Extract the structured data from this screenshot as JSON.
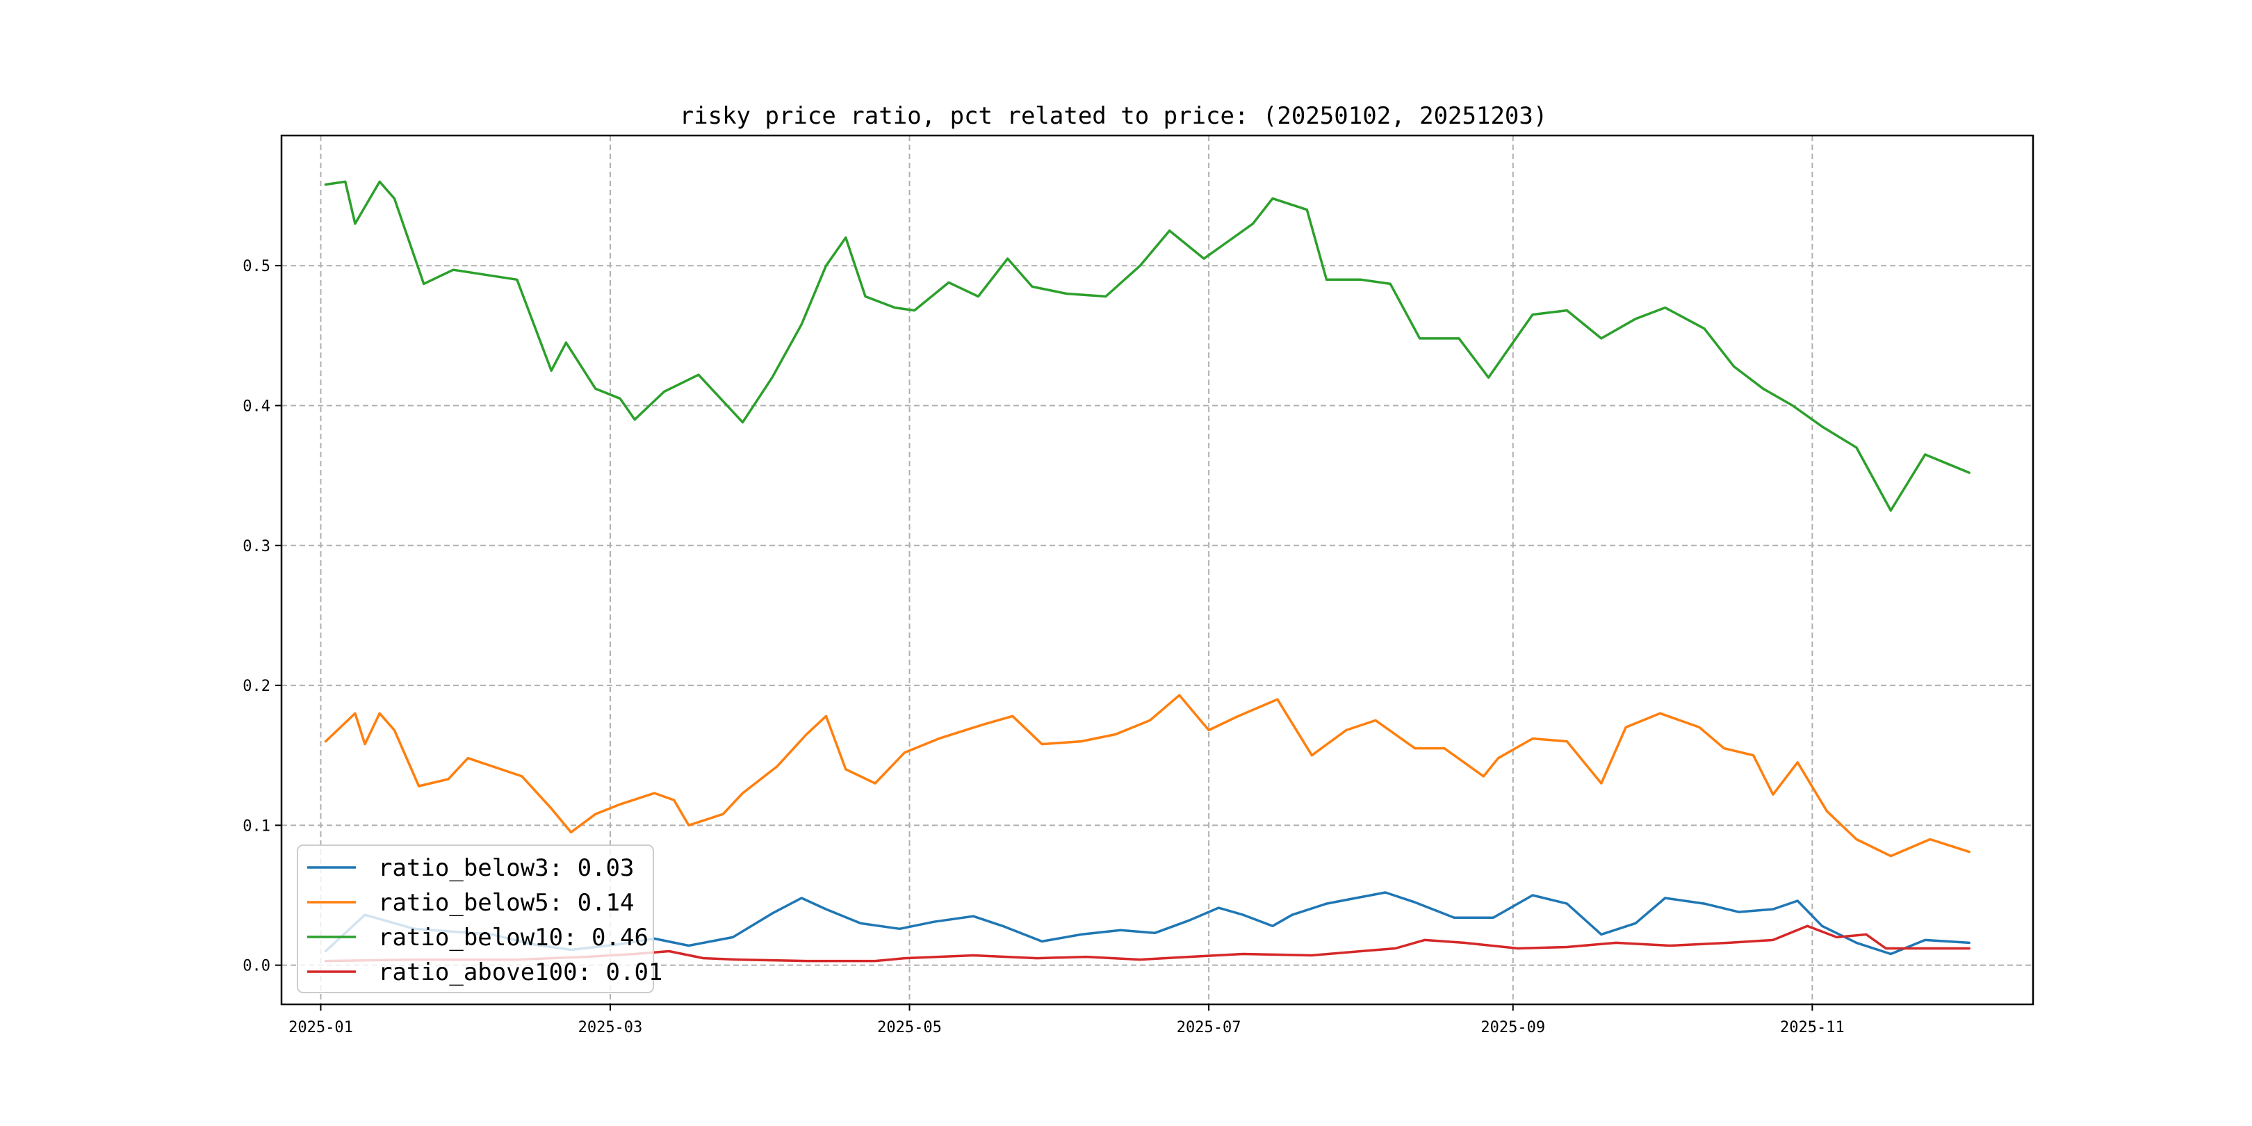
{
  "chart_data": {
    "type": "line",
    "title": "risky price ratio, pct related to price: (20250102, 20251203)",
    "xlabel": "",
    "ylabel": "",
    "xlim": [
      "2024-12-24",
      "2025-12-16"
    ],
    "ylim": [
      -0.028,
      0.593
    ],
    "x_ticks": [
      "2025-01",
      "2025-03",
      "2025-05",
      "2025-07",
      "2025-09",
      "2025-11"
    ],
    "y_ticks": [
      0.0,
      0.1,
      0.2,
      0.3,
      0.4,
      0.5
    ],
    "y_tick_labels": [
      "0.0",
      "0.1",
      "0.2",
      "0.3",
      "0.4",
      "0.5"
    ],
    "grid": true,
    "legend_position": "lower-left",
    "series": [
      {
        "name": "ratio_below3",
        "legend_label": "ratio_below3: 0.03",
        "color": "#1f77b4",
        "points": [
          [
            "2025-01-02",
            0.01
          ],
          [
            "2025-01-10",
            0.036
          ],
          [
            "2025-01-14",
            0.032
          ],
          [
            "2025-01-20",
            0.026
          ],
          [
            "2025-02-05",
            0.022
          ],
          [
            "2025-02-13",
            0.015
          ],
          [
            "2025-02-21",
            0.011
          ],
          [
            "2025-03-03",
            0.015
          ],
          [
            "2025-03-10",
            0.019
          ],
          [
            "2025-03-17",
            0.014
          ],
          [
            "2025-03-26",
            0.02
          ],
          [
            "2025-04-03",
            0.037
          ],
          [
            "2025-04-09",
            0.048
          ],
          [
            "2025-04-14",
            0.04
          ],
          [
            "2025-04-21",
            0.03
          ],
          [
            "2025-04-29",
            0.026
          ],
          [
            "2025-05-06",
            0.031
          ],
          [
            "2025-05-14",
            0.035
          ],
          [
            "2025-05-20",
            0.028
          ],
          [
            "2025-05-28",
            0.017
          ],
          [
            "2025-06-05",
            0.022
          ],
          [
            "2025-06-13",
            0.025
          ],
          [
            "2025-06-20",
            0.023
          ],
          [
            "2025-06-27",
            0.032
          ],
          [
            "2025-07-03",
            0.041
          ],
          [
            "2025-07-08",
            0.036
          ],
          [
            "2025-07-14",
            0.028
          ],
          [
            "2025-07-18",
            0.036
          ],
          [
            "2025-07-25",
            0.044
          ],
          [
            "2025-07-31",
            0.048
          ],
          [
            "2025-08-06",
            0.052
          ],
          [
            "2025-08-12",
            0.045
          ],
          [
            "2025-08-20",
            0.034
          ],
          [
            "2025-08-28",
            0.034
          ],
          [
            "2025-09-05",
            0.05
          ],
          [
            "2025-09-12",
            0.044
          ],
          [
            "2025-09-19",
            0.022
          ],
          [
            "2025-09-26",
            0.03
          ],
          [
            "2025-10-02",
            0.048
          ],
          [
            "2025-10-10",
            0.044
          ],
          [
            "2025-10-17",
            0.038
          ],
          [
            "2025-10-24",
            0.04
          ],
          [
            "2025-10-29",
            0.046
          ],
          [
            "2025-11-03",
            0.028
          ],
          [
            "2025-11-10",
            0.016
          ],
          [
            "2025-11-17",
            0.008
          ],
          [
            "2025-11-24",
            0.018
          ],
          [
            "2025-12-03",
            0.016
          ]
        ]
      },
      {
        "name": "ratio_below5",
        "legend_label": "ratio_below5: 0.14",
        "color": "#ff7f0e",
        "points": [
          [
            "2025-01-02",
            0.16
          ],
          [
            "2025-01-08",
            0.18
          ],
          [
            "2025-01-10",
            0.158
          ],
          [
            "2025-01-13",
            0.18
          ],
          [
            "2025-01-16",
            0.168
          ],
          [
            "2025-01-21",
            0.128
          ],
          [
            "2025-01-27",
            0.133
          ],
          [
            "2025-01-31",
            0.148
          ],
          [
            "2025-02-11",
            0.135
          ],
          [
            "2025-02-17",
            0.112
          ],
          [
            "2025-02-21",
            0.095
          ],
          [
            "2025-02-26",
            0.108
          ],
          [
            "2025-03-03",
            0.115
          ],
          [
            "2025-03-10",
            0.123
          ],
          [
            "2025-03-14",
            0.118
          ],
          [
            "2025-03-17",
            0.1
          ],
          [
            "2025-03-24",
            0.108
          ],
          [
            "2025-03-28",
            0.123
          ],
          [
            "2025-04-04",
            0.142
          ],
          [
            "2025-04-10",
            0.165
          ],
          [
            "2025-04-14",
            0.178
          ],
          [
            "2025-04-18",
            0.14
          ],
          [
            "2025-04-24",
            0.13
          ],
          [
            "2025-04-30",
            0.152
          ],
          [
            "2025-05-07",
            0.162
          ],
          [
            "2025-05-16",
            0.172
          ],
          [
            "2025-05-22",
            0.178
          ],
          [
            "2025-05-28",
            0.158
          ],
          [
            "2025-06-05",
            0.16
          ],
          [
            "2025-06-12",
            0.165
          ],
          [
            "2025-06-19",
            0.175
          ],
          [
            "2025-06-25",
            0.193
          ],
          [
            "2025-07-01",
            0.168
          ],
          [
            "2025-07-07",
            0.178
          ],
          [
            "2025-07-15",
            0.19
          ],
          [
            "2025-07-22",
            0.15
          ],
          [
            "2025-07-29",
            0.168
          ],
          [
            "2025-08-04",
            0.175
          ],
          [
            "2025-08-12",
            0.155
          ],
          [
            "2025-08-18",
            0.155
          ],
          [
            "2025-08-26",
            0.135
          ],
          [
            "2025-08-29",
            0.148
          ],
          [
            "2025-09-05",
            0.162
          ],
          [
            "2025-09-12",
            0.16
          ],
          [
            "2025-09-19",
            0.13
          ],
          [
            "2025-09-24",
            0.17
          ],
          [
            "2025-10-01",
            0.18
          ],
          [
            "2025-10-09",
            0.17
          ],
          [
            "2025-10-14",
            0.155
          ],
          [
            "2025-10-20",
            0.15
          ],
          [
            "2025-10-24",
            0.122
          ],
          [
            "2025-10-29",
            0.145
          ],
          [
            "2025-11-04",
            0.11
          ],
          [
            "2025-11-10",
            0.09
          ],
          [
            "2025-11-17",
            0.078
          ],
          [
            "2025-11-25",
            0.09
          ],
          [
            "2025-12-03",
            0.081
          ]
        ]
      },
      {
        "name": "ratio_below10",
        "legend_label": "ratio_below10: 0.46",
        "color": "#2ca02c",
        "points": [
          [
            "2025-01-02",
            0.558
          ],
          [
            "2025-01-06",
            0.56
          ],
          [
            "2025-01-08",
            0.53
          ],
          [
            "2025-01-13",
            0.56
          ],
          [
            "2025-01-16",
            0.548
          ],
          [
            "2025-01-22",
            0.487
          ],
          [
            "2025-01-28",
            0.497
          ],
          [
            "2025-02-10",
            0.49
          ],
          [
            "2025-02-17",
            0.425
          ],
          [
            "2025-02-20",
            0.445
          ],
          [
            "2025-02-26",
            0.412
          ],
          [
            "2025-03-03",
            0.405
          ],
          [
            "2025-03-06",
            0.39
          ],
          [
            "2025-03-12",
            0.41
          ],
          [
            "2025-03-19",
            0.422
          ],
          [
            "2025-03-28",
            0.388
          ],
          [
            "2025-04-03",
            0.42
          ],
          [
            "2025-04-09",
            0.458
          ],
          [
            "2025-04-14",
            0.5
          ],
          [
            "2025-04-18",
            0.52
          ],
          [
            "2025-04-22",
            0.478
          ],
          [
            "2025-04-28",
            0.47
          ],
          [
            "2025-05-02",
            0.468
          ],
          [
            "2025-05-09",
            0.488
          ],
          [
            "2025-05-15",
            0.478
          ],
          [
            "2025-05-21",
            0.505
          ],
          [
            "2025-05-26",
            0.485
          ],
          [
            "2025-06-02",
            0.48
          ],
          [
            "2025-06-10",
            0.478
          ],
          [
            "2025-06-17",
            0.5
          ],
          [
            "2025-06-23",
            0.525
          ],
          [
            "2025-06-30",
            0.505
          ],
          [
            "2025-07-04",
            0.515
          ],
          [
            "2025-07-10",
            0.53
          ],
          [
            "2025-07-14",
            0.548
          ],
          [
            "2025-07-21",
            0.54
          ],
          [
            "2025-07-25",
            0.49
          ],
          [
            "2025-08-01",
            0.49
          ],
          [
            "2025-08-07",
            0.487
          ],
          [
            "2025-08-13",
            0.448
          ],
          [
            "2025-08-21",
            0.448
          ],
          [
            "2025-08-27",
            0.42
          ],
          [
            "2025-09-02",
            0.45
          ],
          [
            "2025-09-05",
            0.465
          ],
          [
            "2025-09-12",
            0.468
          ],
          [
            "2025-09-19",
            0.448
          ],
          [
            "2025-09-26",
            0.462
          ],
          [
            "2025-10-02",
            0.47
          ],
          [
            "2025-10-10",
            0.455
          ],
          [
            "2025-10-16",
            0.428
          ],
          [
            "2025-10-22",
            0.412
          ],
          [
            "2025-10-28",
            0.4
          ],
          [
            "2025-11-03",
            0.385
          ],
          [
            "2025-11-10",
            0.37
          ],
          [
            "2025-11-17",
            0.325
          ],
          [
            "2025-11-24",
            0.365
          ],
          [
            "2025-12-03",
            0.352
          ]
        ]
      },
      {
        "name": "ratio_above100",
        "legend_label": "ratio_above100: 0.01",
        "color": "#d62728",
        "points": [
          [
            "2025-01-02",
            0.003
          ],
          [
            "2025-01-20",
            0.004
          ],
          [
            "2025-02-10",
            0.004
          ],
          [
            "2025-02-24",
            0.006
          ],
          [
            "2025-03-06",
            0.008
          ],
          [
            "2025-03-13",
            0.01
          ],
          [
            "2025-03-20",
            0.005
          ],
          [
            "2025-03-27",
            0.004
          ],
          [
            "2025-04-10",
            0.003
          ],
          [
            "2025-04-24",
            0.003
          ],
          [
            "2025-04-30",
            0.005
          ],
          [
            "2025-05-14",
            0.007
          ],
          [
            "2025-05-27",
            0.005
          ],
          [
            "2025-06-06",
            0.006
          ],
          [
            "2025-06-17",
            0.004
          ],
          [
            "2025-06-27",
            0.006
          ],
          [
            "2025-07-08",
            0.008
          ],
          [
            "2025-07-22",
            0.007
          ],
          [
            "2025-08-01",
            0.01
          ],
          [
            "2025-08-08",
            0.012
          ],
          [
            "2025-08-14",
            0.018
          ],
          [
            "2025-08-22",
            0.016
          ],
          [
            "2025-09-02",
            0.012
          ],
          [
            "2025-09-12",
            0.013
          ],
          [
            "2025-09-22",
            0.016
          ],
          [
            "2025-10-03",
            0.014
          ],
          [
            "2025-10-15",
            0.016
          ],
          [
            "2025-10-24",
            0.018
          ],
          [
            "2025-10-31",
            0.028
          ],
          [
            "2025-11-06",
            0.02
          ],
          [
            "2025-11-12",
            0.022
          ],
          [
            "2025-11-16",
            0.012
          ],
          [
            "2025-11-24",
            0.012
          ],
          [
            "2025-12-03",
            0.012
          ]
        ]
      }
    ]
  }
}
